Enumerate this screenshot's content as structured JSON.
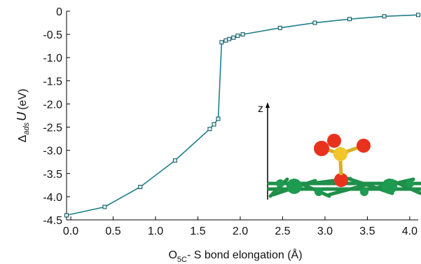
{
  "chart_data": {
    "type": "line",
    "title": "",
    "xlabel_main": "O",
    "xlabel_sub": "5C",
    "xlabel_rest": "- S bond elongation (Å)",
    "ylabel_delta": "Δ",
    "ylabel_sub": "ads",
    "ylabel_var": "U",
    "ylabel_unit": "(eV)",
    "xlim": [
      -0.05,
      4.1
    ],
    "ylim": [
      -4.5,
      0
    ],
    "xticks": [
      "0.0",
      "0.5",
      "1.0",
      "1.5",
      "2.0",
      "2.5",
      "3.0",
      "3.5",
      "4.0"
    ],
    "yticks": [
      "0",
      "-0.5",
      "-1.0",
      "-1.5",
      "-2.0",
      "-2.5",
      "-3.0",
      "-3.5",
      "-4.0",
      "-4.5"
    ],
    "xtick_values": [
      0.0,
      0.5,
      1.0,
      1.5,
      2.0,
      2.5,
      3.0,
      3.5,
      4.0
    ],
    "ytick_values": [
      0,
      -0.5,
      -1.0,
      -1.5,
      -2.0,
      -2.5,
      -3.0,
      -3.5,
      -4.0,
      -4.5
    ],
    "grid": false,
    "series": [
      {
        "color": "#1f7f8c",
        "marker": "square",
        "x": [
          -0.05,
          0.4,
          0.82,
          1.23,
          1.64,
          1.69,
          1.74,
          1.78,
          1.83,
          1.87,
          1.92,
          1.97,
          2.03,
          2.47,
          2.88,
          3.29,
          3.7,
          4.1
        ],
        "y": [
          -4.4,
          -4.22,
          -3.79,
          -3.22,
          -2.54,
          -2.44,
          -2.32,
          -0.67,
          -0.63,
          -0.6,
          -0.57,
          -0.53,
          -0.5,
          -0.36,
          -0.25,
          -0.17,
          -0.11,
          -0.08
        ]
      }
    ],
    "inset": {
      "axis_label": "z"
    }
  }
}
